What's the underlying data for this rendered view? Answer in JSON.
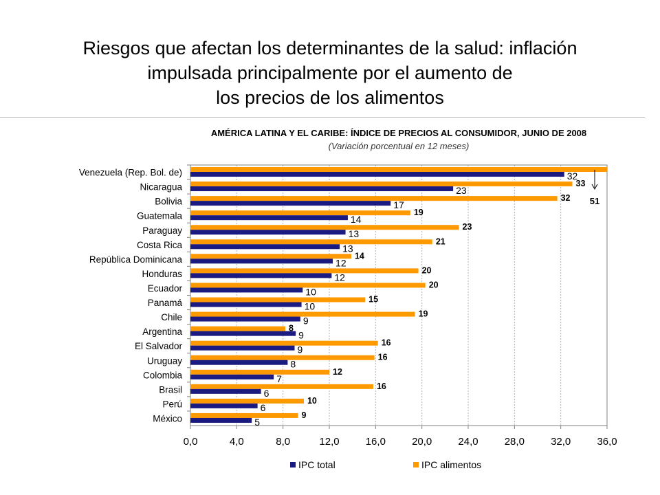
{
  "slide": {
    "title_lines": [
      "Riesgos que afectan los determinantes de la salud: inflación",
      "impulsada principalmente por el aumento de",
      "los precios de los alimentos"
    ]
  },
  "chart_data": {
    "type": "bar",
    "orientation": "horizontal",
    "title": "AMÉRICA LATINA Y EL CARIBE: ÍNDICE DE PRECIOS AL CONSUMIDOR, JUNIO DE 2008",
    "subtitle": "(Variación porcentual en 12 meses)",
    "categories": [
      "Venezuela (Rep. Bol. de)",
      "Nicaragua",
      "Bolivia",
      "Guatemala",
      "Paraguay",
      "Costa Rica",
      "República Dominicana",
      "Honduras",
      "Ecuador",
      "Panamá",
      "Chile",
      "Argentina",
      "El Salvador",
      "Uruguay",
      "Colombia",
      "Brasil",
      "Perú",
      "México"
    ],
    "series": [
      {
        "name": "IPC total",
        "color": "#1a1a80",
        "values": [
          32.3,
          22.7,
          17.3,
          13.6,
          13.4,
          12.9,
          12.3,
          12.2,
          9.7,
          9.6,
          9.5,
          9.1,
          9.0,
          8.4,
          7.2,
          6.1,
          5.8,
          5.3
        ],
        "labels": [
          "32",
          "23",
          "17",
          "14",
          "13",
          "13",
          "12",
          "12",
          "10",
          "10",
          "9",
          "9",
          "9",
          "8",
          "7",
          "6",
          "6",
          "5"
        ]
      },
      {
        "name": "IPC alimentos",
        "color": "#ff9900",
        "values": [
          36.0,
          33.0,
          31.7,
          19.0,
          23.2,
          20.9,
          13.9,
          19.7,
          20.3,
          15.1,
          19.4,
          8.2,
          16.2,
          15.9,
          12.0,
          15.8,
          9.8,
          9.3
        ],
        "labels": [
          "",
          "33",
          "32",
          "19",
          "23",
          "21",
          "14",
          "20",
          "20",
          "15",
          "19",
          "8",
          "16",
          "16",
          "12",
          "16",
          "10",
          "9"
        ]
      }
    ],
    "annotation": {
      "text": "51"
    },
    "x_ticks": [
      "0,0",
      "4,0",
      "8,0",
      "12,0",
      "16,0",
      "20,0",
      "24,0",
      "28,0",
      "32,0",
      "36,0"
    ],
    "xlim": [
      0,
      36
    ],
    "grid": "vertical dashed",
    "legend_position": "bottom"
  }
}
